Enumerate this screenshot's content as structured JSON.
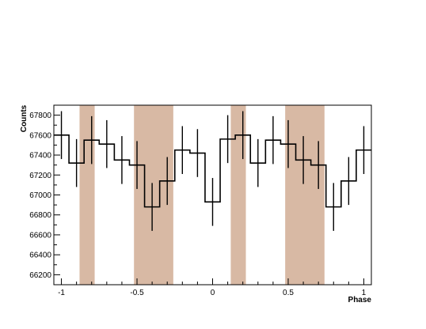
{
  "chart_data": {
    "type": "step-histogram",
    "xlabel": "Phase",
    "ylabel": "Counts",
    "xlim": [
      -1.05,
      1.05
    ],
    "ylim": [
      66100,
      67900
    ],
    "x_ticks": [
      -1,
      -0.5,
      0,
      0.5,
      1
    ],
    "x_tick_labels": [
      "-1",
      "-0.5",
      "0",
      "0.5",
      "1"
    ],
    "y_ticks": [
      66200,
      66400,
      66600,
      66800,
      67000,
      67200,
      67400,
      67600,
      67800
    ],
    "y_tick_labels": [
      "66200",
      "66400",
      "66600",
      "66800",
      "67000",
      "67200",
      "67400",
      "67600",
      "67800"
    ],
    "bin_width": 0.1,
    "bins": [
      {
        "x": -1.0,
        "y": 67600,
        "err": 240
      },
      {
        "x": -0.9,
        "y": 67320,
        "err": 240
      },
      {
        "x": -0.8,
        "y": 67550,
        "err": 240
      },
      {
        "x": -0.7,
        "y": 67510,
        "err": 240
      },
      {
        "x": -0.6,
        "y": 67350,
        "err": 240
      },
      {
        "x": -0.5,
        "y": 67300,
        "err": 240
      },
      {
        "x": -0.4,
        "y": 66880,
        "err": 240
      },
      {
        "x": -0.3,
        "y": 67140,
        "err": 240
      },
      {
        "x": -0.2,
        "y": 67450,
        "err": 240
      },
      {
        "x": -0.1,
        "y": 67420,
        "err": 240
      },
      {
        "x": 0.0,
        "y": 66930,
        "err": 240
      },
      {
        "x": 0.1,
        "y": 67560,
        "err": 240
      },
      {
        "x": 0.2,
        "y": 67600,
        "err": 240
      },
      {
        "x": 0.3,
        "y": 67320,
        "err": 240
      },
      {
        "x": 0.4,
        "y": 67550,
        "err": 240
      },
      {
        "x": 0.5,
        "y": 67510,
        "err": 240
      },
      {
        "x": 0.6,
        "y": 67350,
        "err": 240
      },
      {
        "x": 0.7,
        "y": 67300,
        "err": 240
      },
      {
        "x": 0.8,
        "y": 66880,
        "err": 240
      },
      {
        "x": 0.9,
        "y": 67140,
        "err": 240
      },
      {
        "x": 1.0,
        "y": 67450,
        "err": 240
      }
    ],
    "shaded_regions": [
      {
        "x0": -0.88,
        "x1": -0.78
      },
      {
        "x0": -0.52,
        "x1": -0.26
      },
      {
        "x0": 0.12,
        "x1": 0.22
      },
      {
        "x0": 0.48,
        "x1": 0.74
      }
    ],
    "shade_color": "#d8b9a4",
    "line_color": "#000000"
  }
}
